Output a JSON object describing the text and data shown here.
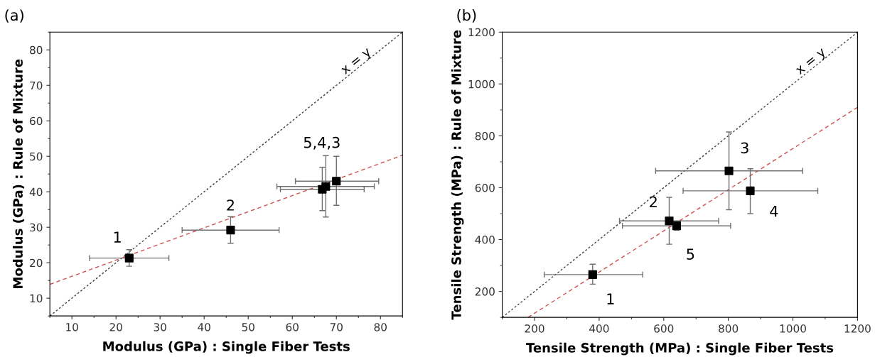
{
  "chart_data": [
    {
      "type": "scatter",
      "title": "(a)",
      "xlabel": "Modulus (GPa) : Single Fiber Tests",
      "ylabel": "Modulus (GPa) : Rule of Mixture",
      "xlim": [
        5,
        85
      ],
      "ylim": [
        5,
        85
      ],
      "xticks": [
        10,
        20,
        30,
        40,
        50,
        60,
        70,
        80
      ],
      "yticks": [
        10,
        20,
        30,
        40,
        50,
        60,
        70,
        80
      ],
      "grid": false,
      "legend": false,
      "series": [
        {
          "type": "line",
          "name": "x = y",
          "color": "#404040",
          "line_style": "dotted",
          "marker": "none",
          "x": [
            5,
            85
          ],
          "values": [
            5,
            85
          ]
        },
        {
          "type": "line",
          "color": "#d05050",
          "line_style": "dashed",
          "marker": "none",
          "x": [
            5,
            85
          ],
          "values": [
            13.9,
            50.3
          ]
        },
        {
          "color": "#000000",
          "marker": "square",
          "x": [
            23,
            46,
            66.8,
            67.6,
            70
          ],
          "values": [
            21.3,
            29.2,
            40.7,
            41.5,
            43
          ],
          "errors": [
            [
              19,
              23.7
            ],
            [
              25.5,
              33
            ],
            [
              34.7,
              46.9
            ],
            [
              32.9,
              50.2
            ],
            [
              36.2,
              50
            ]
          ],
          "xerrors": [
            [
              14,
              32
            ],
            [
              35,
              57
            ],
            [
              57.3,
              76.3
            ],
            [
              56.5,
              78.6
            ],
            [
              60.7,
              79.6
            ]
          ]
        }
      ],
      "annotations": [
        {
          "text": "1",
          "x": 23,
          "y": 21.3
        },
        {
          "text": "2",
          "x": 46,
          "y": 29.2
        },
        {
          "text": "5,4,3",
          "x": 67.6,
          "y": 50.2
        }
      ]
    },
    {
      "type": "scatter",
      "title": "(b)",
      "xlabel": "Tensile Strength (MPa) : Single Fiber Tests",
      "ylabel": "Tensile Strength (MPa) : Rule of Mixture",
      "xlim": [
        100,
        1200
      ],
      "ylim": [
        100,
        1200
      ],
      "xticks": [
        200,
        400,
        600,
        800,
        1000,
        1200
      ],
      "yticks": [
        200,
        400,
        600,
        800,
        1000,
        1200
      ],
      "grid": false,
      "legend": false,
      "series": [
        {
          "type": "line",
          "name": "x = y",
          "color": "#404040",
          "line_style": "dotted",
          "marker": "none",
          "x": [
            100,
            1200
          ],
          "values": [
            100,
            1200
          ]
        },
        {
          "type": "line",
          "color": "#d05050",
          "line_style": "dashed",
          "marker": "none",
          "x": [
            180,
            1200
          ],
          "values": [
            100,
            910
          ]
        },
        {
          "color": "#000000",
          "marker": "square",
          "x": [
            380,
            617,
            640,
            802,
            868
          ],
          "values": [
            265,
            472,
            453,
            665,
            588
          ],
          "errors": [
            [
              228,
              305
            ],
            [
              382,
              563
            ],
            [
              436,
              470
            ],
            [
              515,
              815
            ],
            [
              500,
              673
            ]
          ],
          "xerrors": [
            [
              230,
              535
            ],
            [
              463,
              770
            ],
            [
              472,
              807
            ],
            [
              575,
              1030
            ],
            [
              660,
              1077
            ]
          ]
        }
      ],
      "annotations": [
        {
          "text": "1",
          "x": 380,
          "y": 265
        },
        {
          "text": "2",
          "x": 617,
          "y": 472
        },
        {
          "text": "5",
          "x": 640,
          "y": 453
        },
        {
          "text": "3",
          "x": 802,
          "y": 665
        },
        {
          "text": "4",
          "x": 868,
          "y": 588
        }
      ]
    }
  ]
}
